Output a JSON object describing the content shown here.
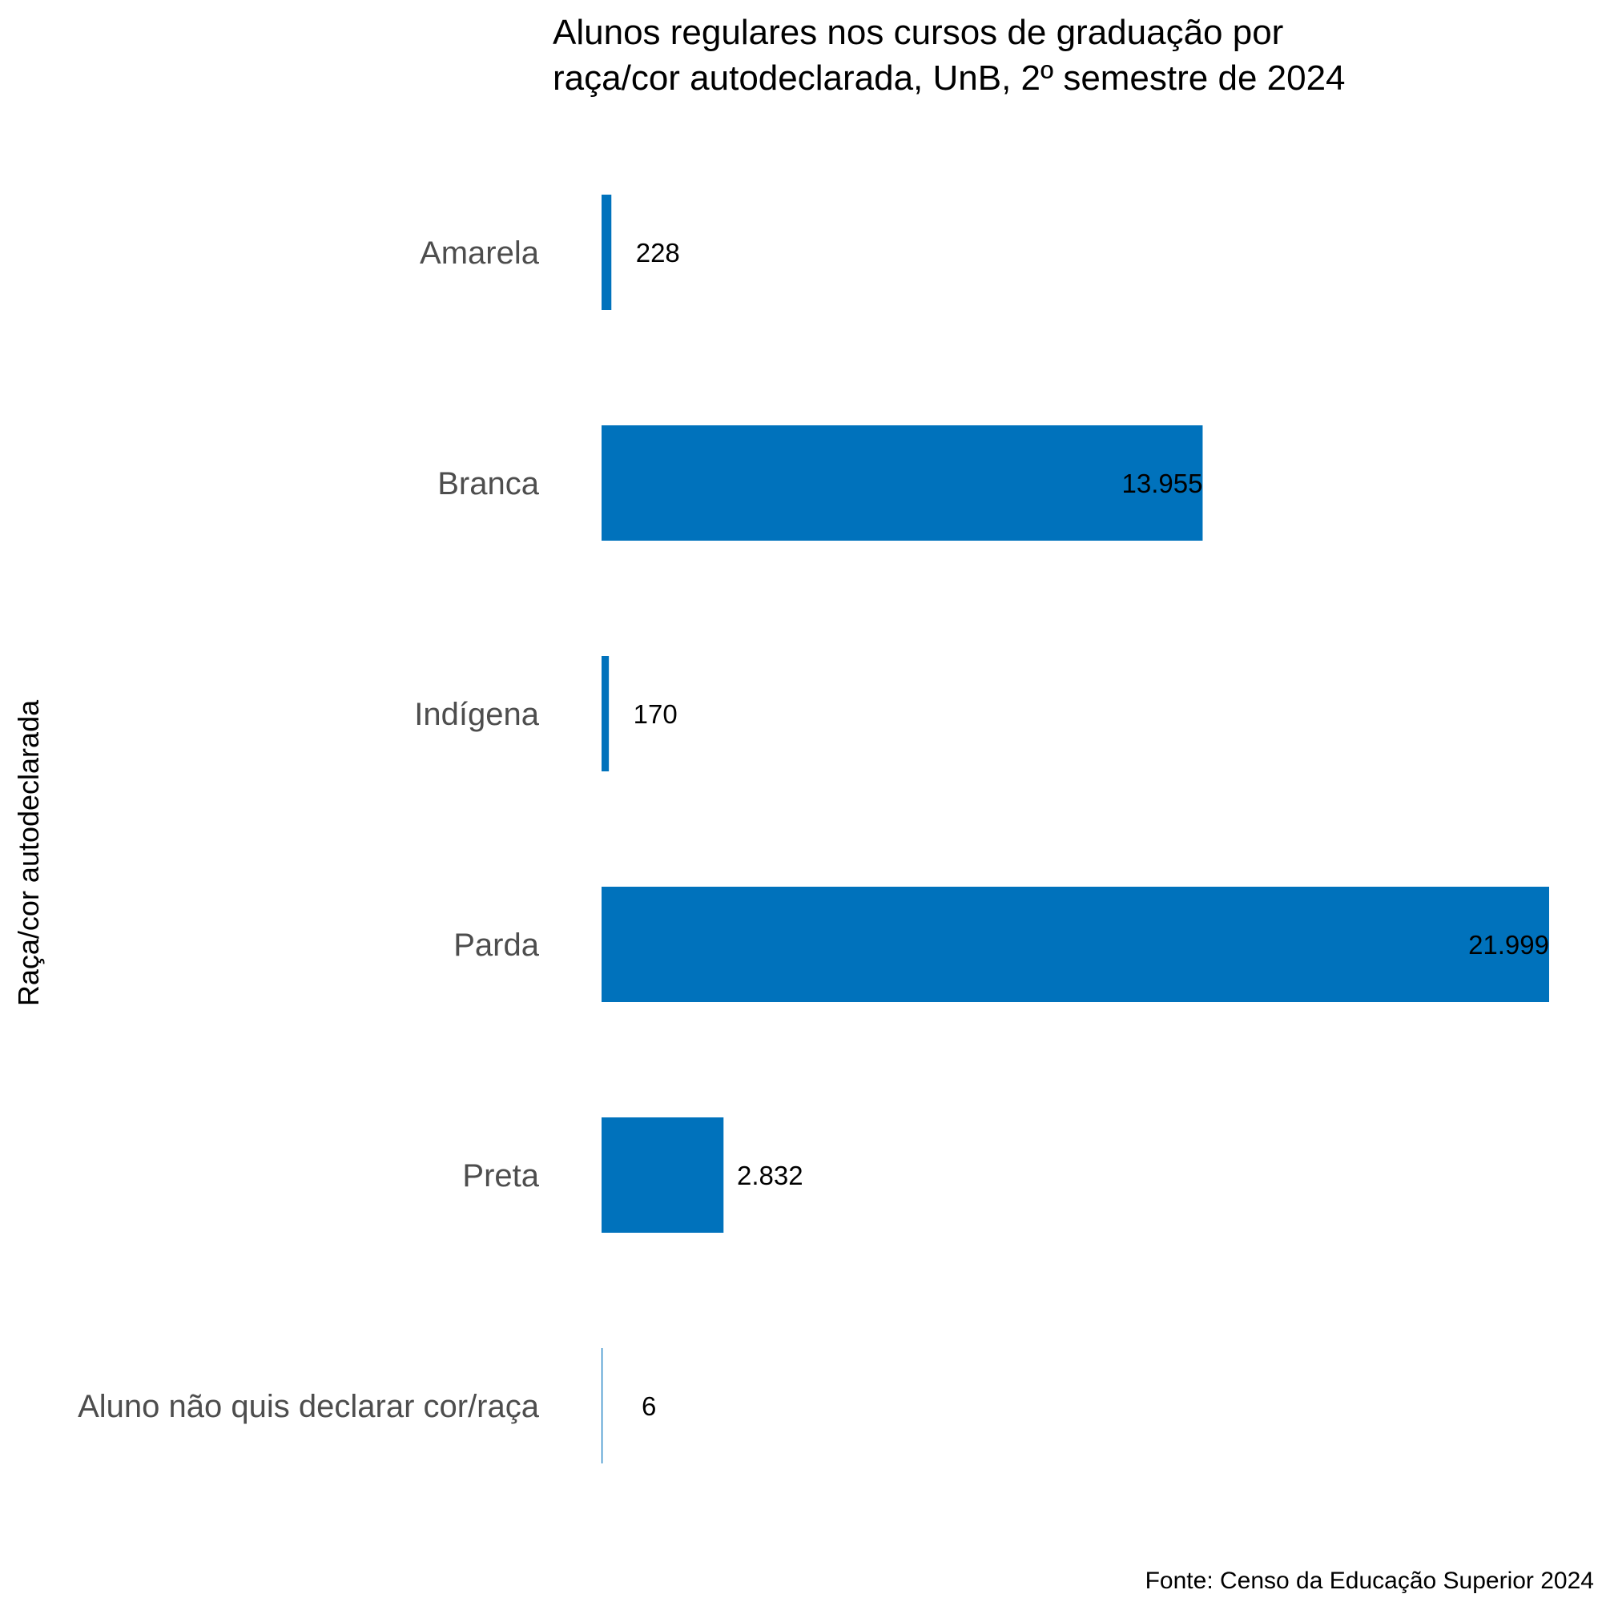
{
  "chart_data": {
    "type": "bar",
    "orientation": "horizontal",
    "title": [
      "Alunos regulares nos cursos de graduação por",
      "raça/cor autodeclarada, UnB, 2º semestre de 2024"
    ],
    "ylabel": "Raça/cor autodeclarada",
    "xlabel": "",
    "caption": "Fonte: Censo da Educação Superior 2024",
    "categories": [
      "Amarela",
      "Branca",
      "Indígena",
      "Parda",
      "Preta",
      "Aluno não quis declarar cor/raça"
    ],
    "values": [
      228,
      13955,
      170,
      21999,
      2832,
      6
    ],
    "value_labels": [
      "228",
      "13.955",
      "170",
      "21.999",
      "2.832",
      "6"
    ],
    "xlim": [
      0,
      21999
    ],
    "grid": false,
    "legend": "none",
    "bar_color": "#0072bc"
  }
}
